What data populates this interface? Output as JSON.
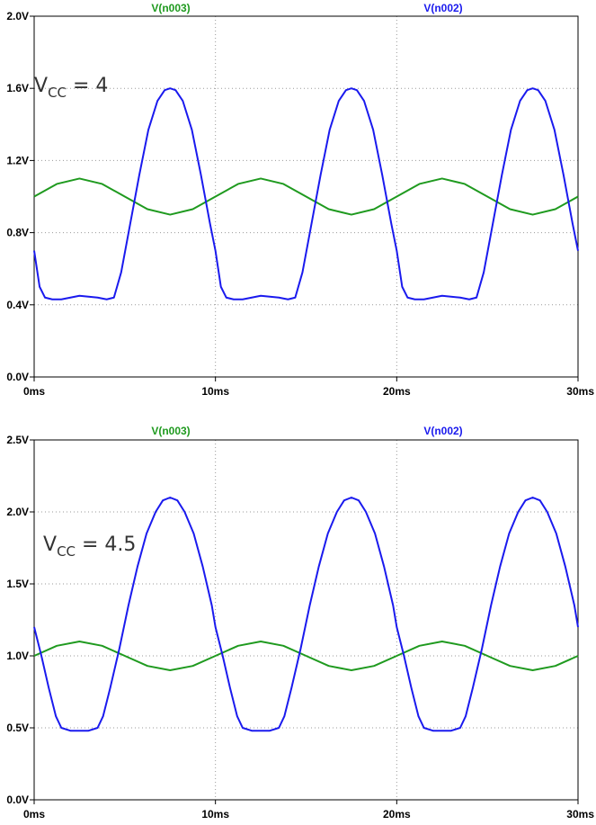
{
  "chart_data": [
    {
      "type": "line",
      "legend": [
        "V(n003)",
        "V(n002)"
      ],
      "annotation": {
        "main": "V",
        "sub": "CC",
        "rest": " = 4"
      },
      "xlim": [
        0,
        30
      ],
      "ylim": [
        0,
        2.0
      ],
      "x_ticks": [
        "0ms",
        "10ms",
        "20ms",
        "30ms"
      ],
      "y_ticks": [
        "0.0V",
        "0.4V",
        "0.8V",
        "1.2V",
        "1.6V",
        "2.0V"
      ],
      "grid": true,
      "series": [
        {
          "name": "V(n003)",
          "color": "#1f9a1f",
          "x": [
            0,
            1.25,
            2.5,
            3.75,
            5,
            6.25,
            7.5,
            8.75,
            10,
            11.25,
            12.5,
            13.75,
            15,
            16.25,
            17.5,
            18.75,
            20,
            21.25,
            22.5,
            23.75,
            25,
            26.25,
            27.5,
            28.75,
            30
          ],
          "y": [
            1.0,
            1.07,
            1.1,
            1.07,
            1.0,
            0.93,
            0.9,
            0.93,
            1.0,
            1.07,
            1.1,
            1.07,
            1.0,
            0.93,
            0.9,
            0.93,
            1.0,
            1.07,
            1.1,
            1.07,
            1.0,
            0.93,
            0.9,
            0.93,
            1.0
          ]
        },
        {
          "name": "V(n002)",
          "color": "#1a1aee",
          "x": [
            0,
            0.3,
            0.6,
            1.0,
            1.5,
            2.5,
            3.5,
            4.0,
            4.4,
            4.8,
            5.3,
            5.8,
            6.3,
            6.8,
            7.2,
            7.5,
            7.8,
            8.2,
            8.7,
            9.2,
            9.7,
            10.0,
            10.3,
            10.6,
            11.0,
            11.5,
            12.5,
            13.5,
            14.0,
            14.4,
            14.8,
            15.3,
            15.8,
            16.3,
            16.8,
            17.2,
            17.5,
            17.8,
            18.2,
            18.7,
            19.2,
            19.7,
            20.0,
            20.3,
            20.6,
            21.0,
            21.5,
            22.5,
            23.5,
            24.0,
            24.4,
            24.8,
            25.3,
            25.8,
            26.3,
            26.8,
            27.2,
            27.5,
            27.8,
            28.2,
            28.7,
            29.2,
            29.7,
            30.0
          ],
          "y": [
            0.7,
            0.5,
            0.44,
            0.43,
            0.43,
            0.45,
            0.44,
            0.43,
            0.44,
            0.58,
            0.85,
            1.12,
            1.37,
            1.53,
            1.59,
            1.6,
            1.59,
            1.53,
            1.37,
            1.12,
            0.85,
            0.7,
            0.5,
            0.44,
            0.43,
            0.43,
            0.45,
            0.44,
            0.43,
            0.44,
            0.58,
            0.85,
            1.12,
            1.37,
            1.53,
            1.59,
            1.6,
            1.59,
            1.53,
            1.37,
            1.12,
            0.85,
            0.7,
            0.5,
            0.44,
            0.43,
            0.43,
            0.45,
            0.44,
            0.43,
            0.44,
            0.58,
            0.85,
            1.12,
            1.37,
            1.53,
            1.59,
            1.6,
            1.59,
            1.53,
            1.37,
            1.12,
            0.85,
            0.7
          ]
        }
      ]
    },
    {
      "type": "line",
      "legend": [
        "V(n003)",
        "V(n002)"
      ],
      "annotation": {
        "main": "V",
        "sub": "CC",
        "rest": " = 4.5"
      },
      "xlim": [
        0,
        30
      ],
      "ylim": [
        0,
        2.5
      ],
      "x_ticks": [
        "0ms",
        "10ms",
        "20ms",
        "30ms"
      ],
      "y_ticks": [
        "0.0V",
        "0.5V",
        "1.0V",
        "1.5V",
        "2.0V",
        "2.5V"
      ],
      "grid": true,
      "series": [
        {
          "name": "V(n003)",
          "color": "#1f9a1f",
          "x": [
            0,
            1.25,
            2.5,
            3.75,
            5,
            6.25,
            7.5,
            8.75,
            10,
            11.25,
            12.5,
            13.75,
            15,
            16.25,
            17.5,
            18.75,
            20,
            21.25,
            22.5,
            23.75,
            25,
            26.25,
            27.5,
            28.75,
            30
          ],
          "y": [
            1.0,
            1.07,
            1.1,
            1.07,
            1.0,
            0.93,
            0.9,
            0.93,
            1.0,
            1.07,
            1.1,
            1.07,
            1.0,
            0.93,
            0.9,
            0.93,
            1.0,
            1.07,
            1.1,
            1.07,
            1.0,
            0.93,
            0.9,
            0.93,
            1.0
          ]
        },
        {
          "name": "V(n002)",
          "color": "#1a1aee",
          "x": [
            0,
            0.4,
            0.8,
            1.2,
            1.5,
            2.0,
            3.0,
            3.5,
            3.8,
            4.2,
            4.7,
            5.2,
            5.7,
            6.2,
            6.7,
            7.1,
            7.5,
            7.9,
            8.3,
            8.8,
            9.3,
            9.8,
            10.0,
            10.4,
            10.8,
            11.2,
            11.5,
            12.0,
            13.0,
            13.5,
            13.8,
            14.2,
            14.7,
            15.2,
            15.7,
            16.2,
            16.7,
            17.1,
            17.5,
            17.9,
            18.3,
            18.8,
            19.3,
            19.8,
            20.0,
            20.4,
            20.8,
            21.2,
            21.5,
            22.0,
            23.0,
            23.5,
            23.8,
            24.2,
            24.7,
            25.2,
            25.7,
            26.2,
            26.7,
            27.1,
            27.5,
            27.9,
            28.3,
            28.8,
            29.3,
            29.8,
            30.0
          ],
          "y": [
            1.2,
            1.0,
            0.78,
            0.58,
            0.5,
            0.48,
            0.48,
            0.5,
            0.58,
            0.78,
            1.05,
            1.35,
            1.62,
            1.85,
            2.0,
            2.08,
            2.1,
            2.08,
            2.0,
            1.85,
            1.62,
            1.35,
            1.2,
            1.0,
            0.78,
            0.58,
            0.5,
            0.48,
            0.48,
            0.5,
            0.58,
            0.78,
            1.05,
            1.35,
            1.62,
            1.85,
            2.0,
            2.08,
            2.1,
            2.08,
            2.0,
            1.85,
            1.62,
            1.35,
            1.2,
            1.0,
            0.78,
            0.58,
            0.5,
            0.48,
            0.48,
            0.5,
            0.58,
            0.78,
            1.05,
            1.35,
            1.62,
            1.85,
            2.0,
            2.08,
            2.1,
            2.08,
            2.0,
            1.85,
            1.62,
            1.35,
            1.2
          ]
        }
      ]
    }
  ]
}
